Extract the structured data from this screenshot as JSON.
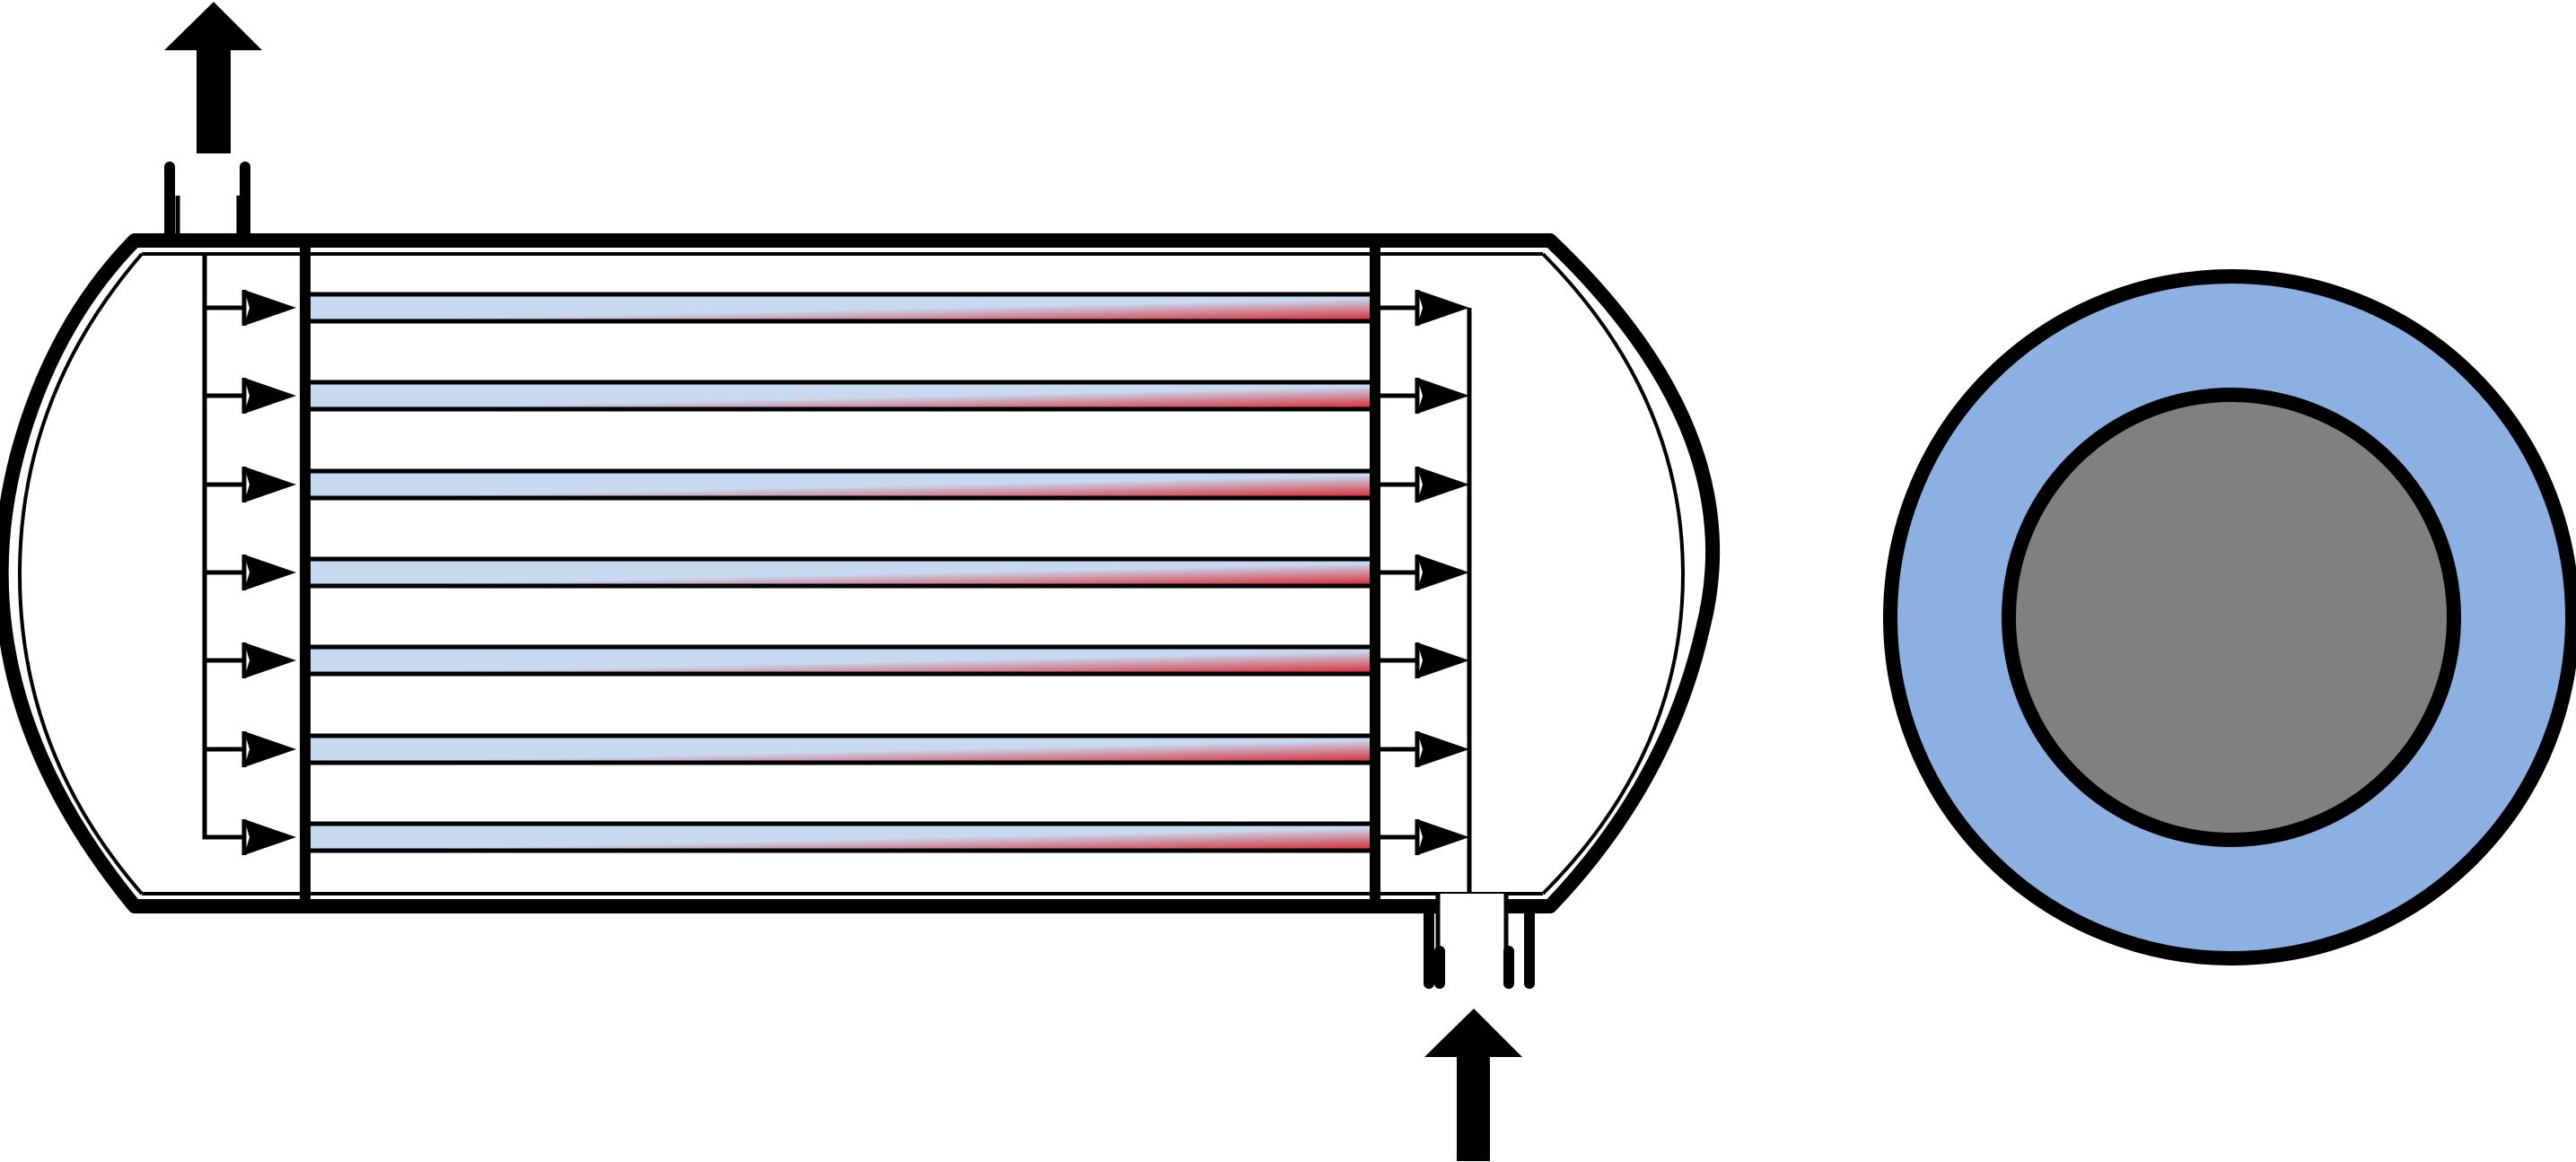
{
  "diagram": {
    "tube_count": 7,
    "colors": {
      "outline": "#000000",
      "background": "#ffffff",
      "tube_cool": "#c8d8ee",
      "tube_hot": "#d9303a",
      "jacket_blue": "#8db0e2",
      "core_gray": "#808080"
    },
    "icons": {
      "top_flow": "arrow-up-icon",
      "bottom_flow": "arrow-up-icon",
      "manifold_flow": "arrow-right-icon"
    }
  }
}
